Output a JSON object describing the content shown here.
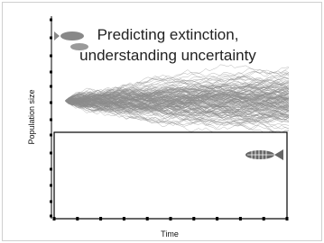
{
  "slide": {
    "title_lines": [
      "Predicting extinction,",
      "understanding uncertainty"
    ],
    "y_axis_label": "Population size",
    "x_axis_label": "Time"
  }
}
